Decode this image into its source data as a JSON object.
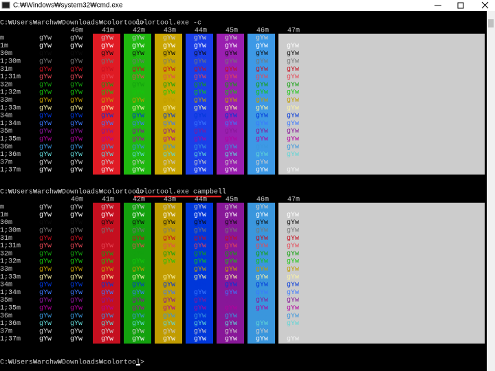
{
  "window": {
    "title": "C:₩Windows₩system32₩cmd.exe"
  },
  "console": {
    "blocks": [
      {
        "prompt": "C:₩Users₩archw₩Downloads₩colortool>",
        "command": "colortool.exe -c",
        "headers": [
          "40m",
          "41m",
          "42m",
          "43m",
          "44m",
          "45m",
          "46m",
          "47m"
        ],
        "rows": [
          {
            "label": "m",
            "cells": [
              "gYw",
              "gYw",
              "gYw",
              "gYw",
              "gYw",
              "gYw",
              "gYw",
              "gYw",
              "gYw"
            ]
          },
          {
            "label": "1m",
            "cells": [
              "gYw",
              "gYw",
              "gYw",
              "gYw",
              "gYw",
              "gYw",
              "gYw",
              "gYw",
              "gYw"
            ]
          },
          {
            "label": "30m",
            "cells": [
              "gYw",
              "gYw",
              "gYw",
              "gYw",
              "gYw",
              "gYw",
              "gYw",
              "gYw",
              "gYw"
            ]
          },
          {
            "label": "1;30m",
            "cells": [
              "gYw",
              "gYw",
              "gYw",
              "gYw",
              "gYw",
              "gYw",
              "gYw",
              "gYw",
              "gYw"
            ]
          },
          {
            "label": "31m",
            "cells": [
              "gYw",
              "gYw",
              "gYw",
              "gYw",
              "gYw",
              "gYw",
              "gYw",
              "gYw",
              "gYw"
            ]
          },
          {
            "label": "1;31m",
            "cells": [
              "gYw",
              "gYw",
              "gYw",
              "gYw",
              "gYw",
              "gYw",
              "gYw",
              "gYw",
              "gYw"
            ]
          },
          {
            "label": "32m",
            "cells": [
              "gYw",
              "gYw",
              "gYw",
              "gYw",
              "gYw",
              "gYw",
              "gYw",
              "gYw",
              "gYw"
            ]
          },
          {
            "label": "1;32m",
            "cells": [
              "gYw",
              "gYw",
              "gYw",
              "gYw",
              "gYw",
              "gYw",
              "gYw",
              "gYw",
              "gYw"
            ]
          },
          {
            "label": "33m",
            "cells": [
              "gYw",
              "gYw",
              "gYw",
              "gYw",
              "gYw",
              "gYw",
              "gYw",
              "gYw",
              "gYw"
            ]
          },
          {
            "label": "1;33m",
            "cells": [
              "gYw",
              "gYw",
              "gYw",
              "gYw",
              "gYw",
              "gYw",
              "gYw",
              "gYw",
              "gYw"
            ]
          },
          {
            "label": "34m",
            "cells": [
              "gYw",
              "gYw",
              "gYw",
              "gYw",
              "gYw",
              "gYw",
              "gYw",
              "gYw",
              "gYw"
            ]
          },
          {
            "label": "1;34m",
            "cells": [
              "gYw",
              "gYw",
              "gYw",
              "gYw",
              "gYw",
              "gYw",
              "gYw",
              "gYw",
              "gYw"
            ]
          },
          {
            "label": "35m",
            "cells": [
              "gYw",
              "gYw",
              "gYw",
              "gYw",
              "gYw",
              "gYw",
              "gYw",
              "gYw",
              "gYw"
            ]
          },
          {
            "label": "1;35m",
            "cells": [
              "gYw",
              "gYw",
              "gYw",
              "gYw",
              "gYw",
              "gYw",
              "gYw",
              "gYw",
              "gYw"
            ]
          },
          {
            "label": "36m",
            "cells": [
              "gYw",
              "gYw",
              "gYw",
              "gYw",
              "gYw",
              "gYw",
              "gYw",
              "gYw",
              "gYw"
            ]
          },
          {
            "label": "1;36m",
            "cells": [
              "gYw",
              "gYw",
              "gYw",
              "gYw",
              "gYw",
              "gYw",
              "gYw",
              "gYw",
              "gYw"
            ]
          },
          {
            "label": "37m",
            "cells": [
              "gYw",
              "gYw",
              "gYw",
              "gYw",
              "gYw",
              "gYw",
              "gYw",
              "gYw",
              "gYw"
            ]
          },
          {
            "label": "1;37m",
            "cells": [
              "gYw",
              "gYw",
              "gYw",
              "gYw",
              "gYw",
              "gYw",
              "gYw",
              "gYw",
              "gYw"
            ]
          }
        ]
      },
      {
        "prompt": "C:₩Users₩archw₩Downloads₩colortool>",
        "command": "colortool.exe campbell",
        "headers": [
          "40m",
          "41m",
          "42m",
          "43m",
          "44m",
          "45m",
          "46m",
          "47m"
        ],
        "rows": [
          {
            "label": "m",
            "cells": [
              "gYw",
              "gYw",
              "gYw",
              "gYw",
              "gYw",
              "gYw",
              "gYw",
              "gYw",
              "gYw"
            ]
          },
          {
            "label": "1m",
            "cells": [
              "gYw",
              "gYw",
              "gYw",
              "gYw",
              "gYw",
              "gYw",
              "gYw",
              "gYw",
              "gYw"
            ]
          },
          {
            "label": "30m",
            "cells": [
              "gYw",
              "gYw",
              "gYw",
              "gYw",
              "gYw",
              "gYw",
              "gYw",
              "gYw",
              "gYw"
            ]
          },
          {
            "label": "1;30m",
            "cells": [
              "gYw",
              "gYw",
              "gYw",
              "gYw",
              "gYw",
              "gYw",
              "gYw",
              "gYw",
              "gYw"
            ]
          },
          {
            "label": "31m",
            "cells": [
              "gYw",
              "gYw",
              "gYw",
              "gYw",
              "gYw",
              "gYw",
              "gYw",
              "gYw",
              "gYw"
            ]
          },
          {
            "label": "1;31m",
            "cells": [
              "gYw",
              "gYw",
              "gYw",
              "gYw",
              "gYw",
              "gYw",
              "gYw",
              "gYw",
              "gYw"
            ]
          },
          {
            "label": "32m",
            "cells": [
              "gYw",
              "gYw",
              "gYw",
              "gYw",
              "gYw",
              "gYw",
              "gYw",
              "gYw",
              "gYw"
            ]
          },
          {
            "label": "1;32m",
            "cells": [
              "gYw",
              "gYw",
              "gYw",
              "gYw",
              "gYw",
              "gYw",
              "gYw",
              "gYw",
              "gYw"
            ]
          },
          {
            "label": "33m",
            "cells": [
              "gYw",
              "gYw",
              "gYw",
              "gYw",
              "gYw",
              "gYw",
              "gYw",
              "gYw",
              "gYw"
            ]
          },
          {
            "label": "1;33m",
            "cells": [
              "gYw",
              "gYw",
              "gYw",
              "gYw",
              "gYw",
              "gYw",
              "gYw",
              "gYw",
              "gYw"
            ]
          },
          {
            "label": "34m",
            "cells": [
              "gYw",
              "gYw",
              "gYw",
              "gYw",
              "gYw",
              "gYw",
              "gYw",
              "gYw",
              "gYw"
            ]
          },
          {
            "label": "1;34m",
            "cells": [
              "gYw",
              "gYw",
              "gYw",
              "gYw",
              "gYw",
              "gYw",
              "gYw",
              "gYw",
              "gYw"
            ]
          },
          {
            "label": "35m",
            "cells": [
              "gYw",
              "gYw",
              "gYw",
              "gYw",
              "gYw",
              "gYw",
              "gYw",
              "gYw",
              "gYw"
            ]
          },
          {
            "label": "1;35m",
            "cells": [
              "gYw",
              "gYw",
              "gYw",
              "gYw",
              "gYw",
              "gYw",
              "gYw",
              "gYw",
              "gYw"
            ]
          },
          {
            "label": "36m",
            "cells": [
              "gYw",
              "gYw",
              "gYw",
              "gYw",
              "gYw",
              "gYw",
              "gYw",
              "gYw",
              "gYw"
            ]
          },
          {
            "label": "1;36m",
            "cells": [
              "gYw",
              "gYw",
              "gYw",
              "gYw",
              "gYw",
              "gYw",
              "gYw",
              "gYw",
              "gYw"
            ]
          },
          {
            "label": "37m",
            "cells": [
              "gYw",
              "gYw",
              "gYw",
              "gYw",
              "gYw",
              "gYw",
              "gYw",
              "gYw",
              "gYw"
            ]
          },
          {
            "label": "1;37m",
            "cells": [
              "gYw",
              "gYw",
              "gYw",
              "gYw",
              "gYw",
              "gYw",
              "gYw",
              "gYw",
              "gYw"
            ]
          }
        ]
      }
    ],
    "final_prompt": "C:₩Users₩archw₩Downloads₩colortool>"
  }
}
